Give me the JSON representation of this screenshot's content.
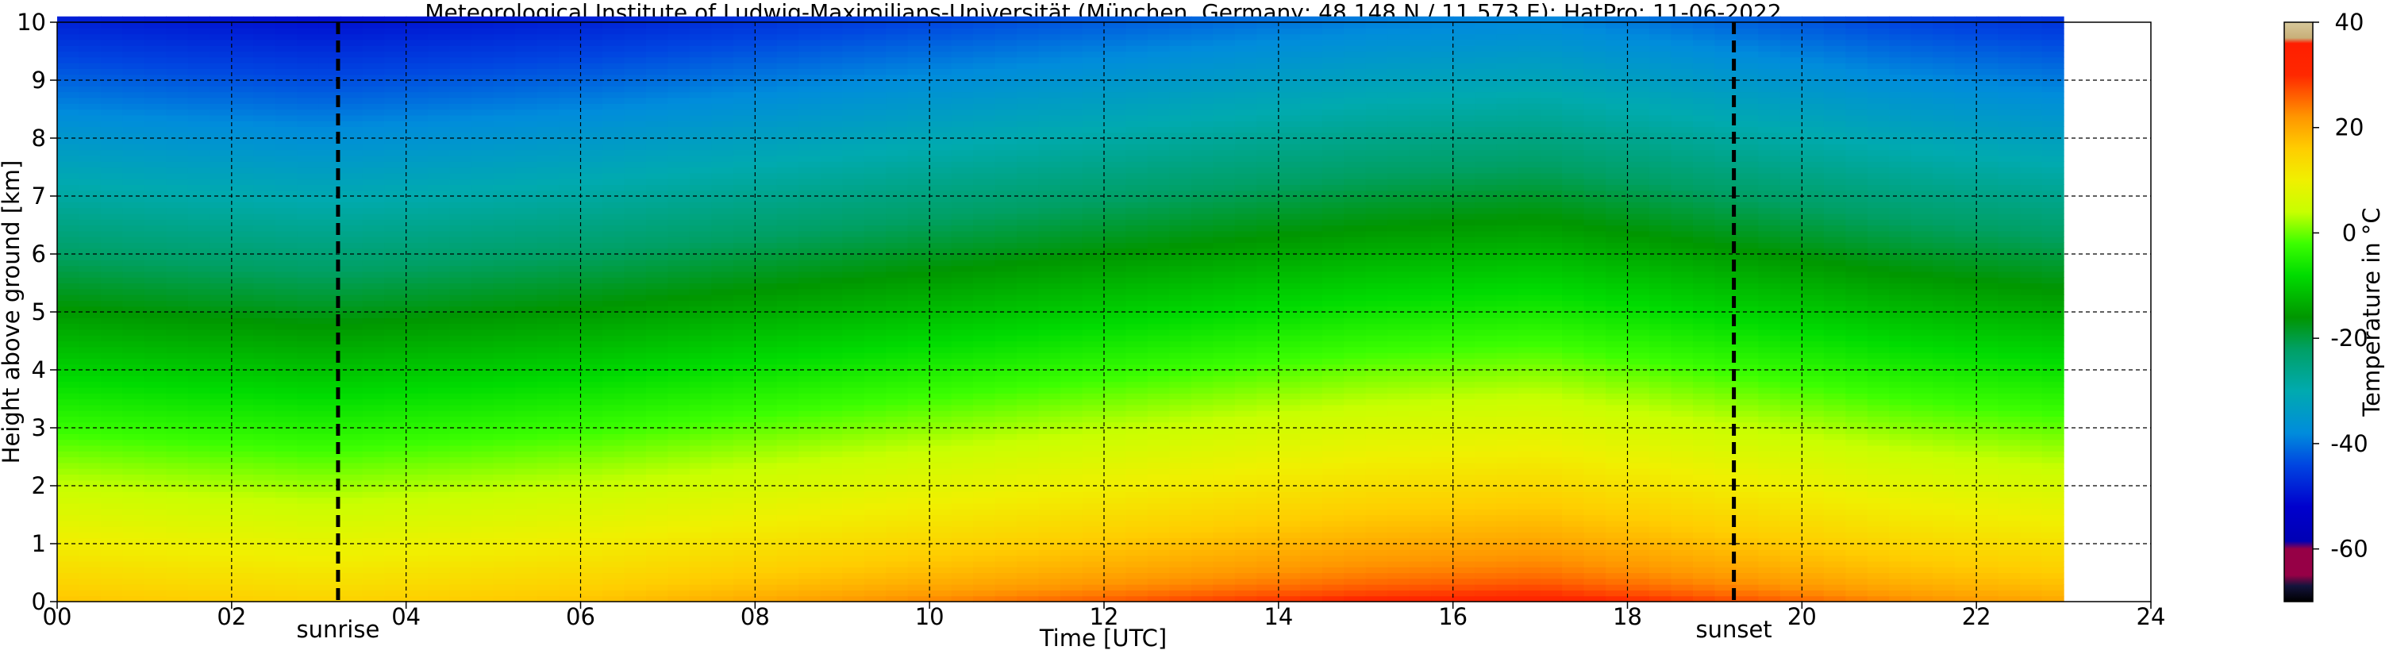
{
  "chart_data": {
    "type": "heatmap",
    "title": "Meteorological Institute of Ludwig-Maximilians-Universität (München, Germany; 48.148 N / 11.573 E):    HatPro: 11-06-2022",
    "xlabel": "Time [UTC]",
    "ylabel": "Height above ground [km]",
    "xlim": [
      0,
      24
    ],
    "ylim": [
      0,
      10
    ],
    "x_ticks": [
      "00",
      "02",
      "04",
      "06",
      "08",
      "10",
      "12",
      "14",
      "16",
      "18",
      "20",
      "22",
      "24"
    ],
    "y_ticks": [
      "0",
      "1",
      "2",
      "3",
      "4",
      "5",
      "6",
      "7",
      "8",
      "9",
      "10"
    ],
    "grid": true,
    "data_end_hour": 23,
    "annotations": [
      {
        "label": "sunrise",
        "x": 3.22
      },
      {
        "label": "sunset",
        "x": 19.22
      }
    ],
    "colorbar": {
      "label": "Temperature in °C",
      "range": [
        -70,
        40
      ],
      "ticks": [
        "-60",
        "-40",
        "-20",
        "0",
        "20",
        "40"
      ]
    },
    "surface_temperature_by_hour": [
      {
        "x": 0,
        "y": 17
      },
      {
        "x": 3,
        "y": 15
      },
      {
        "x": 6,
        "y": 17
      },
      {
        "x": 9,
        "y": 20
      },
      {
        "x": 12,
        "y": 23
      },
      {
        "x": 15,
        "y": 26
      },
      {
        "x": 17,
        "y": 27
      },
      {
        "x": 19,
        "y": 24
      },
      {
        "x": 21,
        "y": 21
      },
      {
        "x": 23,
        "y": 19
      }
    ],
    "lapse_rate_c_per_km": -6.5,
    "stratosphere_floor_c": -56
  }
}
